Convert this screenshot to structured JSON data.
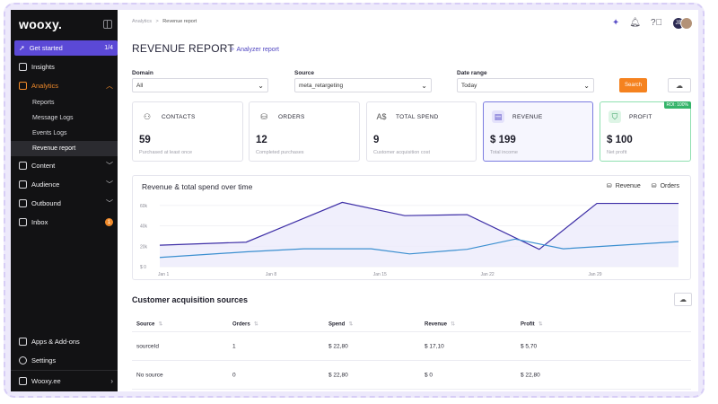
{
  "sidebar": {
    "logo": "wooxy.",
    "get_started": {
      "label": "Get started",
      "count": "1/4"
    },
    "items": [
      {
        "label": "Insights"
      },
      {
        "label": "Analytics"
      },
      {
        "label": "Content"
      },
      {
        "label": "Audience"
      },
      {
        "label": "Outbound"
      },
      {
        "label": "Inbox",
        "badge": "1"
      }
    ],
    "analytics_sub": [
      "Reports",
      "Message Logs",
      "Events Logs",
      "Revenue report"
    ],
    "bottom": [
      {
        "label": "Apps & Add-ons"
      },
      {
        "label": "Settings"
      }
    ],
    "workspace": "Wooxy.ee"
  },
  "header": {
    "breadcrumb": {
      "parent": "Analytics",
      "separator": ">",
      "current": "Revenue report"
    },
    "avatar_initials": "JE"
  },
  "page": {
    "title": "REVENUE REPORT",
    "analyzer_link": "Analyzer report"
  },
  "filters": {
    "domain": {
      "label": "Domain",
      "value": "All"
    },
    "source": {
      "label": "Source",
      "value": "meta_retargeting"
    },
    "date_range": {
      "label": "Date range",
      "value": "Today"
    },
    "search_label": "Search"
  },
  "kpis": [
    {
      "label": "CONTACTS",
      "value": "59",
      "sub": "Purchased at least once",
      "icon": "contacts-icon"
    },
    {
      "label": "ORDERS",
      "value": "12",
      "sub": "Completed purchases",
      "icon": "bag-icon"
    },
    {
      "label": "TOTAL SPEND",
      "value": "9",
      "sub": "Customer acquisition cost",
      "icon": "spend-icon"
    },
    {
      "label": "REVENUE",
      "value": "$ 199",
      "sub": "Total income",
      "icon": "revenue-icon"
    },
    {
      "label": "PROFIT",
      "value": "$ 100",
      "sub": "Net profit",
      "icon": "profit-icon",
      "badge": "ROI: 100%"
    }
  ],
  "colors": {
    "accent": "#5b49d6",
    "orange": "#f5821f",
    "revenue_line": "#3d2ea6",
    "orders_line": "#3b8fd0",
    "profit_green": "#35b46a"
  },
  "chart_data": {
    "type": "line",
    "title": "Revenue & total spend over time",
    "x": [
      "Jan 1",
      "Jan 8",
      "Jan 15",
      "Jan 22",
      "Jan 29"
    ],
    "x_ticks": [
      "Jan 1",
      "Jan 8",
      "Jan 15",
      "Jan 22",
      "Jan 29"
    ],
    "y_ticks": [
      "$ 0",
      "20k",
      "40k",
      "60k"
    ],
    "ylim": [
      0,
      66000
    ],
    "series": [
      {
        "name": "Revenue",
        "icon": "bag-icon",
        "color": "#3d2ea6",
        "points": [
          [
            0,
            21000
          ],
          [
            0.9,
            24000
          ],
          [
            1.9,
            63000
          ],
          [
            2.55,
            50000
          ],
          [
            3.2,
            51000
          ],
          [
            3.95,
            17000
          ],
          [
            4.55,
            62000
          ],
          [
            5.4,
            62000
          ]
        ]
      },
      {
        "name": "Orders",
        "icon": "bag-icon",
        "color": "#3b8fd0",
        "points": [
          [
            0,
            9000
          ],
          [
            0.9,
            14500
          ],
          [
            1.5,
            17500
          ],
          [
            2.2,
            17500
          ],
          [
            2.6,
            12500
          ],
          [
            3.2,
            17000
          ],
          [
            3.7,
            27000
          ],
          [
            4.2,
            17500
          ],
          [
            5.4,
            24500
          ]
        ]
      }
    ]
  },
  "acquisition": {
    "title": "Customer acquisition sources",
    "columns": [
      "Source",
      "Orders",
      "Spend",
      "Revenue",
      "Profit"
    ],
    "rows": [
      [
        "sourceId",
        "1",
        "$ 22,80",
        "$ 17,10",
        "$ 5,70"
      ],
      [
        "No source",
        "0",
        "$ 22,80",
        "$ 0",
        "$ 22,80"
      ]
    ]
  }
}
